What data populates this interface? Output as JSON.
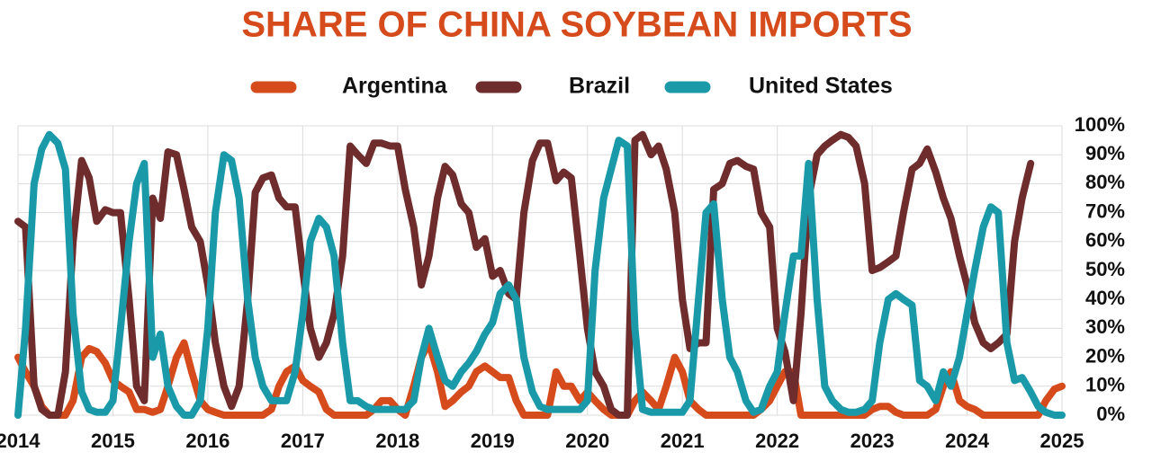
{
  "chart_data": {
    "type": "line",
    "title": "SHARE OF CHINA SOYBEAN IMPORTS",
    "x": [
      2014,
      2014.08,
      2014.17,
      2014.25,
      2014.33,
      2014.42,
      2014.5,
      2014.58,
      2014.67,
      2014.75,
      2014.83,
      2014.92,
      2015,
      2015.08,
      2015.17,
      2015.25,
      2015.33,
      2015.42,
      2015.5,
      2015.58,
      2015.67,
      2015.75,
      2015.83,
      2015.92,
      2016,
      2016.08,
      2016.17,
      2016.25,
      2016.33,
      2016.42,
      2016.5,
      2016.58,
      2016.67,
      2016.75,
      2016.83,
      2016.92,
      2017,
      2017.08,
      2017.17,
      2017.25,
      2017.33,
      2017.42,
      2017.5,
      2017.58,
      2017.67,
      2017.75,
      2017.83,
      2017.92,
      2018,
      2018.08,
      2018.17,
      2018.25,
      2018.33,
      2018.42,
      2018.5,
      2018.58,
      2018.67,
      2018.75,
      2018.83,
      2018.92,
      2019,
      2019.08,
      2019.17,
      2019.25,
      2019.33,
      2019.42,
      2019.5,
      2019.58,
      2019.67,
      2019.75,
      2019.83,
      2019.92,
      2020,
      2020.08,
      2020.17,
      2020.25,
      2020.33,
      2020.42,
      2020.5,
      2020.58,
      2020.67,
      2020.75,
      2020.83,
      2020.92,
      2021,
      2021.08,
      2021.17,
      2021.25,
      2021.33,
      2021.42,
      2021.5,
      2021.58,
      2021.67,
      2021.75,
      2021.83,
      2021.92,
      2022,
      2022.08,
      2022.17,
      2022.25,
      2022.33,
      2022.42,
      2022.5,
      2022.58,
      2022.67,
      2022.75,
      2022.83,
      2022.92,
      2023,
      2023.08,
      2023.17,
      2023.25,
      2023.33,
      2023.42,
      2023.5,
      2023.58,
      2023.67,
      2023.75,
      2023.83,
      2023.92,
      2024,
      2024.08,
      2024.17,
      2024.25,
      2024.33,
      2024.42,
      2024.5,
      2024.58,
      2024.67,
      2024.75,
      2024.83,
      2024.92,
      2025
    ],
    "series": [
      {
        "name": "Argentina",
        "color": "#d64b1c",
        "values": [
          20,
          15,
          10,
          3,
          0,
          0,
          0,
          5,
          20,
          23,
          22,
          18,
          12,
          10,
          8,
          2,
          2,
          1,
          2,
          10,
          20,
          25,
          15,
          5,
          2,
          1,
          0,
          0,
          0,
          0,
          0,
          0,
          2,
          10,
          15,
          17,
          12,
          10,
          8,
          2,
          0,
          0,
          0,
          0,
          0,
          2,
          5,
          5,
          2,
          0,
          10,
          20,
          25,
          15,
          3,
          5,
          8,
          10,
          15,
          17,
          15,
          13,
          13,
          5,
          0,
          0,
          0,
          0,
          15,
          10,
          10,
          5,
          8,
          5,
          2,
          0,
          0,
          0,
          5,
          8,
          5,
          2,
          10,
          20,
          15,
          5,
          2,
          0,
          0,
          0,
          0,
          0,
          0,
          0,
          2,
          5,
          10,
          15,
          15,
          0,
          0,
          0,
          0,
          0,
          0,
          0,
          0,
          0,
          2,
          3,
          3,
          1,
          0,
          0,
          0,
          0,
          2,
          10,
          15,
          5,
          3,
          2,
          0,
          0,
          0,
          0,
          0,
          0,
          0,
          0,
          5,
          9,
          10
        ]
      },
      {
        "name": "Brazil",
        "color": "#6e2c2c",
        "values": [
          67,
          65,
          10,
          2,
          0,
          0,
          15,
          60,
          88,
          82,
          67,
          71,
          70,
          70,
          40,
          10,
          5,
          75,
          68,
          91,
          90,
          78,
          65,
          60,
          45,
          25,
          10,
          3,
          10,
          40,
          77,
          82,
          83,
          75,
          72,
          72,
          50,
          30,
          20,
          25,
          35,
          55,
          93,
          90,
          87,
          94,
          94,
          93,
          93,
          78,
          65,
          45,
          55,
          75,
          86,
          83,
          73,
          70,
          58,
          61,
          48,
          50,
          42,
          40,
          70,
          88,
          94,
          94,
          81,
          84,
          82,
          55,
          30,
          15,
          10,
          2,
          0,
          0,
          95,
          97,
          90,
          93,
          85,
          70,
          40,
          23,
          25,
          25,
          78,
          80,
          87,
          88,
          86,
          85,
          70,
          65,
          30,
          22,
          5,
          35,
          75,
          90,
          93,
          95,
          97,
          96,
          93,
          80,
          50,
          51,
          53,
          55,
          70,
          85,
          87,
          92,
          84,
          75,
          68,
          55,
          45,
          32,
          25,
          23,
          25,
          28,
          60,
          75,
          87,
          null,
          null,
          null,
          null
        ]
      },
      {
        "name": "United States",
        "color": "#1a9aa8",
        "values": [
          0,
          30,
          80,
          92,
          97,
          94,
          85,
          35,
          8,
          2,
          1,
          1,
          5,
          30,
          60,
          80,
          87,
          20,
          28,
          10,
          3,
          0,
          0,
          5,
          30,
          70,
          90,
          88,
          75,
          40,
          20,
          10,
          5,
          5,
          5,
          15,
          35,
          60,
          68,
          65,
          55,
          25,
          5,
          5,
          3,
          2,
          2,
          2,
          2,
          2,
          5,
          20,
          30,
          20,
          12,
          10,
          15,
          18,
          22,
          28,
          32,
          42,
          45,
          40,
          20,
          8,
          3,
          2,
          2,
          2,
          2,
          2,
          5,
          50,
          75,
          85,
          95,
          93,
          30,
          2,
          1,
          1,
          1,
          1,
          1,
          5,
          40,
          70,
          73,
          40,
          20,
          15,
          5,
          1,
          2,
          10,
          15,
          35,
          55,
          55,
          87,
          40,
          10,
          5,
          2,
          1,
          1,
          2,
          5,
          25,
          40,
          42,
          40,
          38,
          12,
          10,
          5,
          15,
          10,
          20,
          35,
          50,
          65,
          72,
          70,
          25,
          12,
          13,
          8,
          3,
          1,
          0,
          0
        ]
      }
    ],
    "xlim": [
      2014,
      2025
    ],
    "xticks": [
      2014,
      2015,
      2016,
      2017,
      2018,
      2019,
      2020,
      2021,
      2022,
      2023,
      2024,
      2025
    ],
    "ylim": [
      0,
      100
    ],
    "yticks": [
      {
        "value": 0,
        "label": "0%"
      },
      {
        "value": 10,
        "label": "10%"
      },
      {
        "value": 20,
        "label": "20%"
      },
      {
        "value": 30,
        "label": "30%"
      },
      {
        "value": 40,
        "label": "40%"
      },
      {
        "value": 50,
        "label": "50%"
      },
      {
        "value": 60,
        "label": "60%"
      },
      {
        "value": 70,
        "label": "70%"
      },
      {
        "value": 80,
        "label": "80%"
      },
      {
        "value": 90,
        "label": "90%"
      },
      {
        "value": 100,
        "label": "100%"
      }
    ],
    "grid": true,
    "legend": "top"
  }
}
